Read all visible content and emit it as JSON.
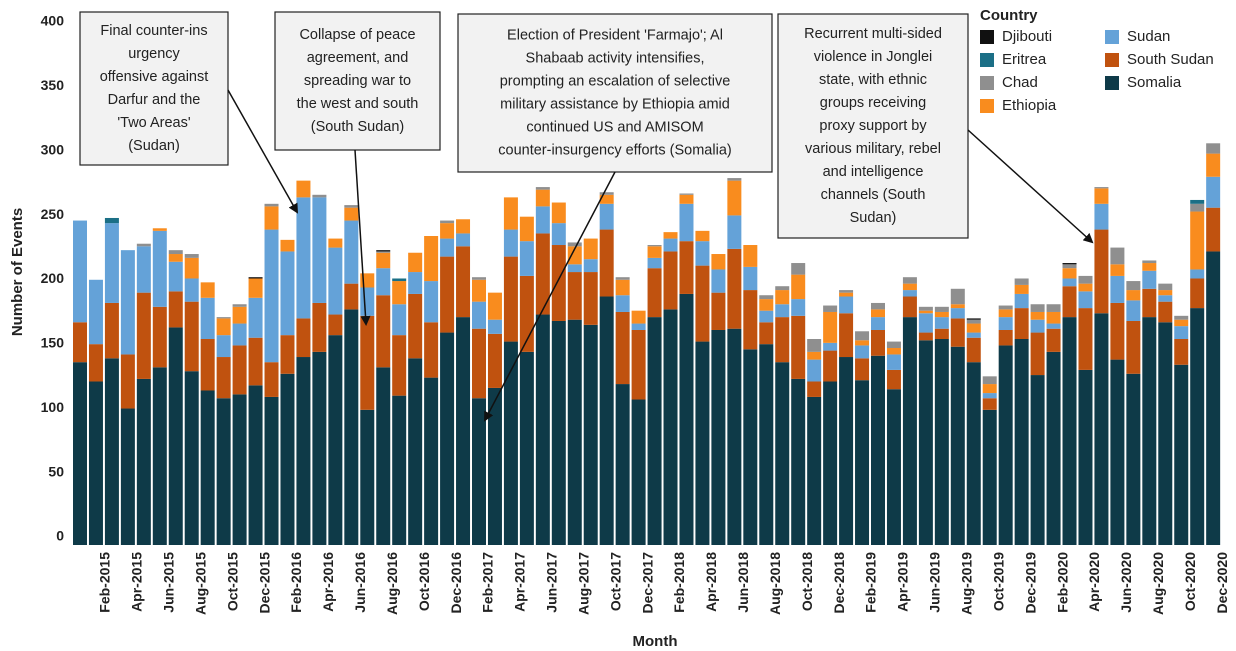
{
  "chart_data": {
    "type": "stacked-bar",
    "x_label": "Month",
    "y_label": "Number of Events",
    "legend_title": "Country",
    "categories": [
      null,
      "Feb-2015",
      null,
      "Apr-2015",
      null,
      "Jun-2015",
      null,
      "Aug-2015",
      null,
      "Oct-2015",
      null,
      "Dec-2015",
      null,
      "Feb-2016",
      null,
      "Apr-2016",
      null,
      "Jun-2016",
      null,
      "Aug-2016",
      null,
      "Oct-2016",
      null,
      "Dec-2016",
      null,
      "Feb-2017",
      null,
      "Apr-2017",
      null,
      "Jun-2017",
      null,
      "Aug-2017",
      null,
      "Oct-2017",
      null,
      "Dec-2017",
      null,
      "Feb-2018",
      null,
      "Apr-2018",
      null,
      "Jun-2018",
      null,
      "Aug-2018",
      null,
      "Oct-2018",
      null,
      "Dec-2018",
      null,
      "Feb-2019",
      null,
      "Apr-2019",
      null,
      "Jun-2019",
      null,
      "Aug-2019",
      null,
      "Oct-2019",
      null,
      "Dec-2019",
      null,
      "Feb-2020",
      null,
      "Apr-2020",
      null,
      "Jun-2020",
      null,
      "Aug-2020",
      null,
      "Oct-2020",
      null,
      "Dec-2020"
    ],
    "series": [
      {
        "name": "Somalia",
        "color": "#0e3a48",
        "values": [
          142,
          127,
          145,
          106,
          129,
          138,
          169,
          135,
          120,
          114,
          117,
          124,
          115,
          133,
          146,
          150,
          163,
          183,
          105,
          138,
          116,
          145,
          130,
          165,
          177,
          114,
          122,
          158,
          150,
          179,
          174,
          175,
          171,
          193,
          125,
          113,
          177,
          183,
          195,
          158,
          167,
          168,
          152,
          156,
          142,
          129,
          115,
          127,
          146,
          128,
          147,
          121,
          177,
          159,
          160,
          154,
          142,
          105,
          155,
          160,
          132,
          150,
          177,
          136,
          180,
          144,
          133,
          177,
          173,
          140,
          184,
          228
        ]
      },
      {
        "name": "South Sudan",
        "color": "#c0520f",
        "values": [
          31,
          29,
          43,
          42,
          67,
          47,
          28,
          54,
          40,
          32,
          38,
          37,
          27,
          30,
          30,
          38,
          16,
          20,
          73,
          56,
          47,
          50,
          43,
          59,
          55,
          54,
          42,
          66,
          59,
          63,
          59,
          37,
          41,
          52,
          56,
          54,
          38,
          45,
          41,
          59,
          29,
          62,
          46,
          17,
          35,
          49,
          12,
          24,
          34,
          17,
          20,
          15,
          16,
          6,
          8,
          22,
          19,
          9,
          12,
          24,
          33,
          18,
          24,
          48,
          65,
          44,
          41,
          22,
          16,
          20,
          23,
          34
        ]
      },
      {
        "name": "Sudan",
        "color": "#64a2d8",
        "values": [
          79,
          50,
          62,
          81,
          36,
          59,
          23,
          18,
          32,
          17,
          17,
          31,
          103,
          65,
          94,
          82,
          52,
          49,
          22,
          21,
          24,
          17,
          32,
          14,
          10,
          21,
          11,
          21,
          27,
          21,
          17,
          6,
          10,
          20,
          13,
          5,
          8,
          10,
          29,
          19,
          18,
          26,
          18,
          9,
          10,
          13,
          17,
          6,
          13,
          10,
          10,
          12,
          5,
          15,
          9,
          8,
          4,
          4,
          10,
          11,
          10,
          4,
          6,
          13,
          20,
          21,
          16,
          14,
          5,
          10,
          7,
          24
        ]
      },
      {
        "name": "Ethiopia",
        "color": "#f98c1e",
        "values": [
          0,
          0,
          0,
          0,
          0,
          2,
          6,
          16,
          12,
          13,
          13,
          15,
          18,
          9,
          13,
          0,
          7,
          10,
          11,
          12,
          18,
          15,
          35,
          12,
          11,
          17,
          21,
          25,
          19,
          13,
          16,
          14,
          16,
          7,
          12,
          10,
          9,
          5,
          7,
          8,
          12,
          27,
          17,
          9,
          11,
          19,
          6,
          24,
          3,
          4,
          6,
          5,
          5,
          2,
          4,
          3,
          7,
          7,
          6,
          7,
          6,
          9,
          8,
          6,
          12,
          9,
          8,
          6,
          4,
          5,
          45,
          18
        ]
      },
      {
        "name": "Chad",
        "color": "#8f8f8f",
        "values": [
          0,
          0,
          0,
          0,
          2,
          0,
          3,
          3,
          0,
          1,
          2,
          0,
          2,
          0,
          0,
          2,
          0,
          2,
          0,
          1,
          0,
          0,
          0,
          2,
          0,
          2,
          0,
          0,
          0,
          2,
          0,
          3,
          0,
          2,
          2,
          0,
          1,
          0,
          1,
          0,
          0,
          2,
          0,
          3,
          3,
          9,
          10,
          5,
          2,
          7,
          5,
          5,
          5,
          3,
          4,
          12,
          3,
          6,
          3,
          5,
          6,
          6,
          3,
          6,
          1,
          13,
          7,
          2,
          5,
          3,
          6,
          8
        ]
      },
      {
        "name": "Eritrea",
        "color": "#1b6f86",
        "values": [
          0,
          0,
          4,
          0,
          0,
          0,
          0,
          0,
          0,
          0,
          0,
          0,
          0,
          0,
          0,
          0,
          0,
          0,
          0,
          0,
          2,
          0,
          0,
          0,
          0,
          0,
          0,
          0,
          0,
          0,
          0,
          0,
          0,
          0,
          0,
          0,
          0,
          0,
          0,
          0,
          0,
          0,
          0,
          0,
          0,
          0,
          0,
          0,
          0,
          0,
          0,
          0,
          0,
          0,
          0,
          0,
          0,
          0,
          0,
          0,
          0,
          0,
          0,
          0,
          0,
          0,
          0,
          0,
          0,
          0,
          3,
          0
        ]
      },
      {
        "name": "Djibouti",
        "color": "#111111",
        "values": [
          0,
          0,
          0,
          0,
          0,
          0,
          0,
          0,
          0,
          0,
          0,
          1,
          0,
          0,
          0,
          0,
          0,
          0,
          0,
          1,
          0,
          0,
          0,
          0,
          0,
          0,
          0,
          0,
          0,
          0,
          0,
          0,
          0,
          0,
          0,
          0,
          0,
          0,
          0,
          0,
          0,
          0,
          0,
          0,
          0,
          0,
          0,
          0,
          0,
          0,
          0,
          0,
          0,
          0,
          0,
          0,
          1,
          0,
          0,
          0,
          0,
          0,
          1,
          0,
          0,
          0,
          0,
          0,
          0,
          0,
          0,
          0
        ]
      }
    ],
    "ylim": [
      0,
      400
    ],
    "yticks": [
      0,
      50,
      100,
      150,
      200,
      250,
      300,
      350,
      400
    ],
    "grid": false,
    "annotations": [
      {
        "lines": [
          "Final counter-ins",
          "urgency",
          "offensive against",
          "Darfur and the",
          "'Two Areas'",
          "(Sudan)"
        ]
      },
      {
        "lines": [
          "Collapse of peace",
          "agreement, and",
          "spreading war to",
          "the west and south",
          "(South Sudan)"
        ]
      },
      {
        "lines": [
          "Election of President 'Farmajo'; Al",
          "Shabaab activity intensifies,",
          "prompting an escalation of selective",
          "military assistance by Ethiopia amid",
          "continued US and AMISOM",
          "counter-insurgency efforts (Somalia)"
        ]
      },
      {
        "lines": [
          "Recurrent multi-sided",
          "violence in Jonglei",
          "state, with ethnic",
          "groups receiving",
          "proxy support by",
          "various military, rebel",
          "and intelligence",
          "channels (South",
          "Sudan)"
        ]
      }
    ]
  }
}
